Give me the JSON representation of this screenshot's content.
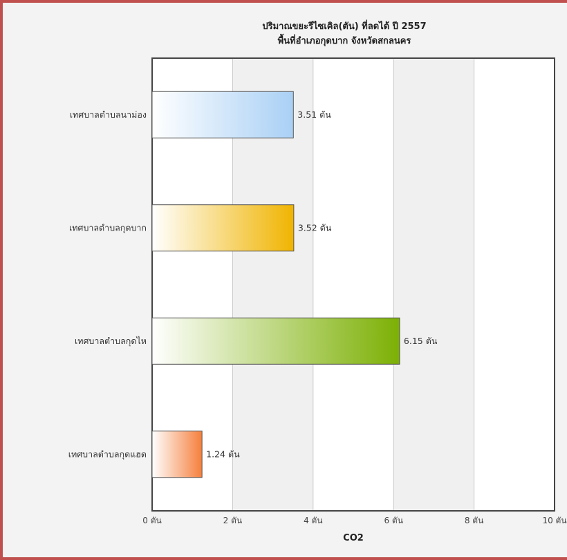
{
  "chart_data": {
    "type": "bar",
    "orientation": "horizontal",
    "title": "ปริมาณขยะรีไซเคิล(ตัน) ที่ลดได้ ปี 2557",
    "subtitle": "พื้นที่อำเภอกุดบาก จังหวัดสกลนคร",
    "xlabel": "CO2",
    "ylabel": "",
    "categories": [
      "เทศบาลตำบลนาม่อง",
      "เทศบาลตำบลกุดบาก",
      "เทศบาลตำบลกุดไห",
      "เทศบาลตำบลกุดแฮด"
    ],
    "values": [
      3.51,
      3.52,
      6.15,
      1.24
    ],
    "data_labels": [
      "3.51 ตัน",
      "3.52 ตัน",
      "6.15 ตัน",
      "1.24 ตัน"
    ],
    "xlim": [
      0,
      10
    ],
    "ticks": [
      0,
      2,
      4,
      6,
      8,
      10
    ],
    "tick_labels": [
      "0 ตัน",
      "2 ตัน",
      "4 ตัน",
      "6 ตัน",
      "8 ตัน",
      "10 ตัน"
    ],
    "grid": true,
    "legend": "none",
    "bar_colors": [
      "#a9d0f5",
      "#f0b400",
      "#7cb004",
      "#f57f3c"
    ]
  }
}
